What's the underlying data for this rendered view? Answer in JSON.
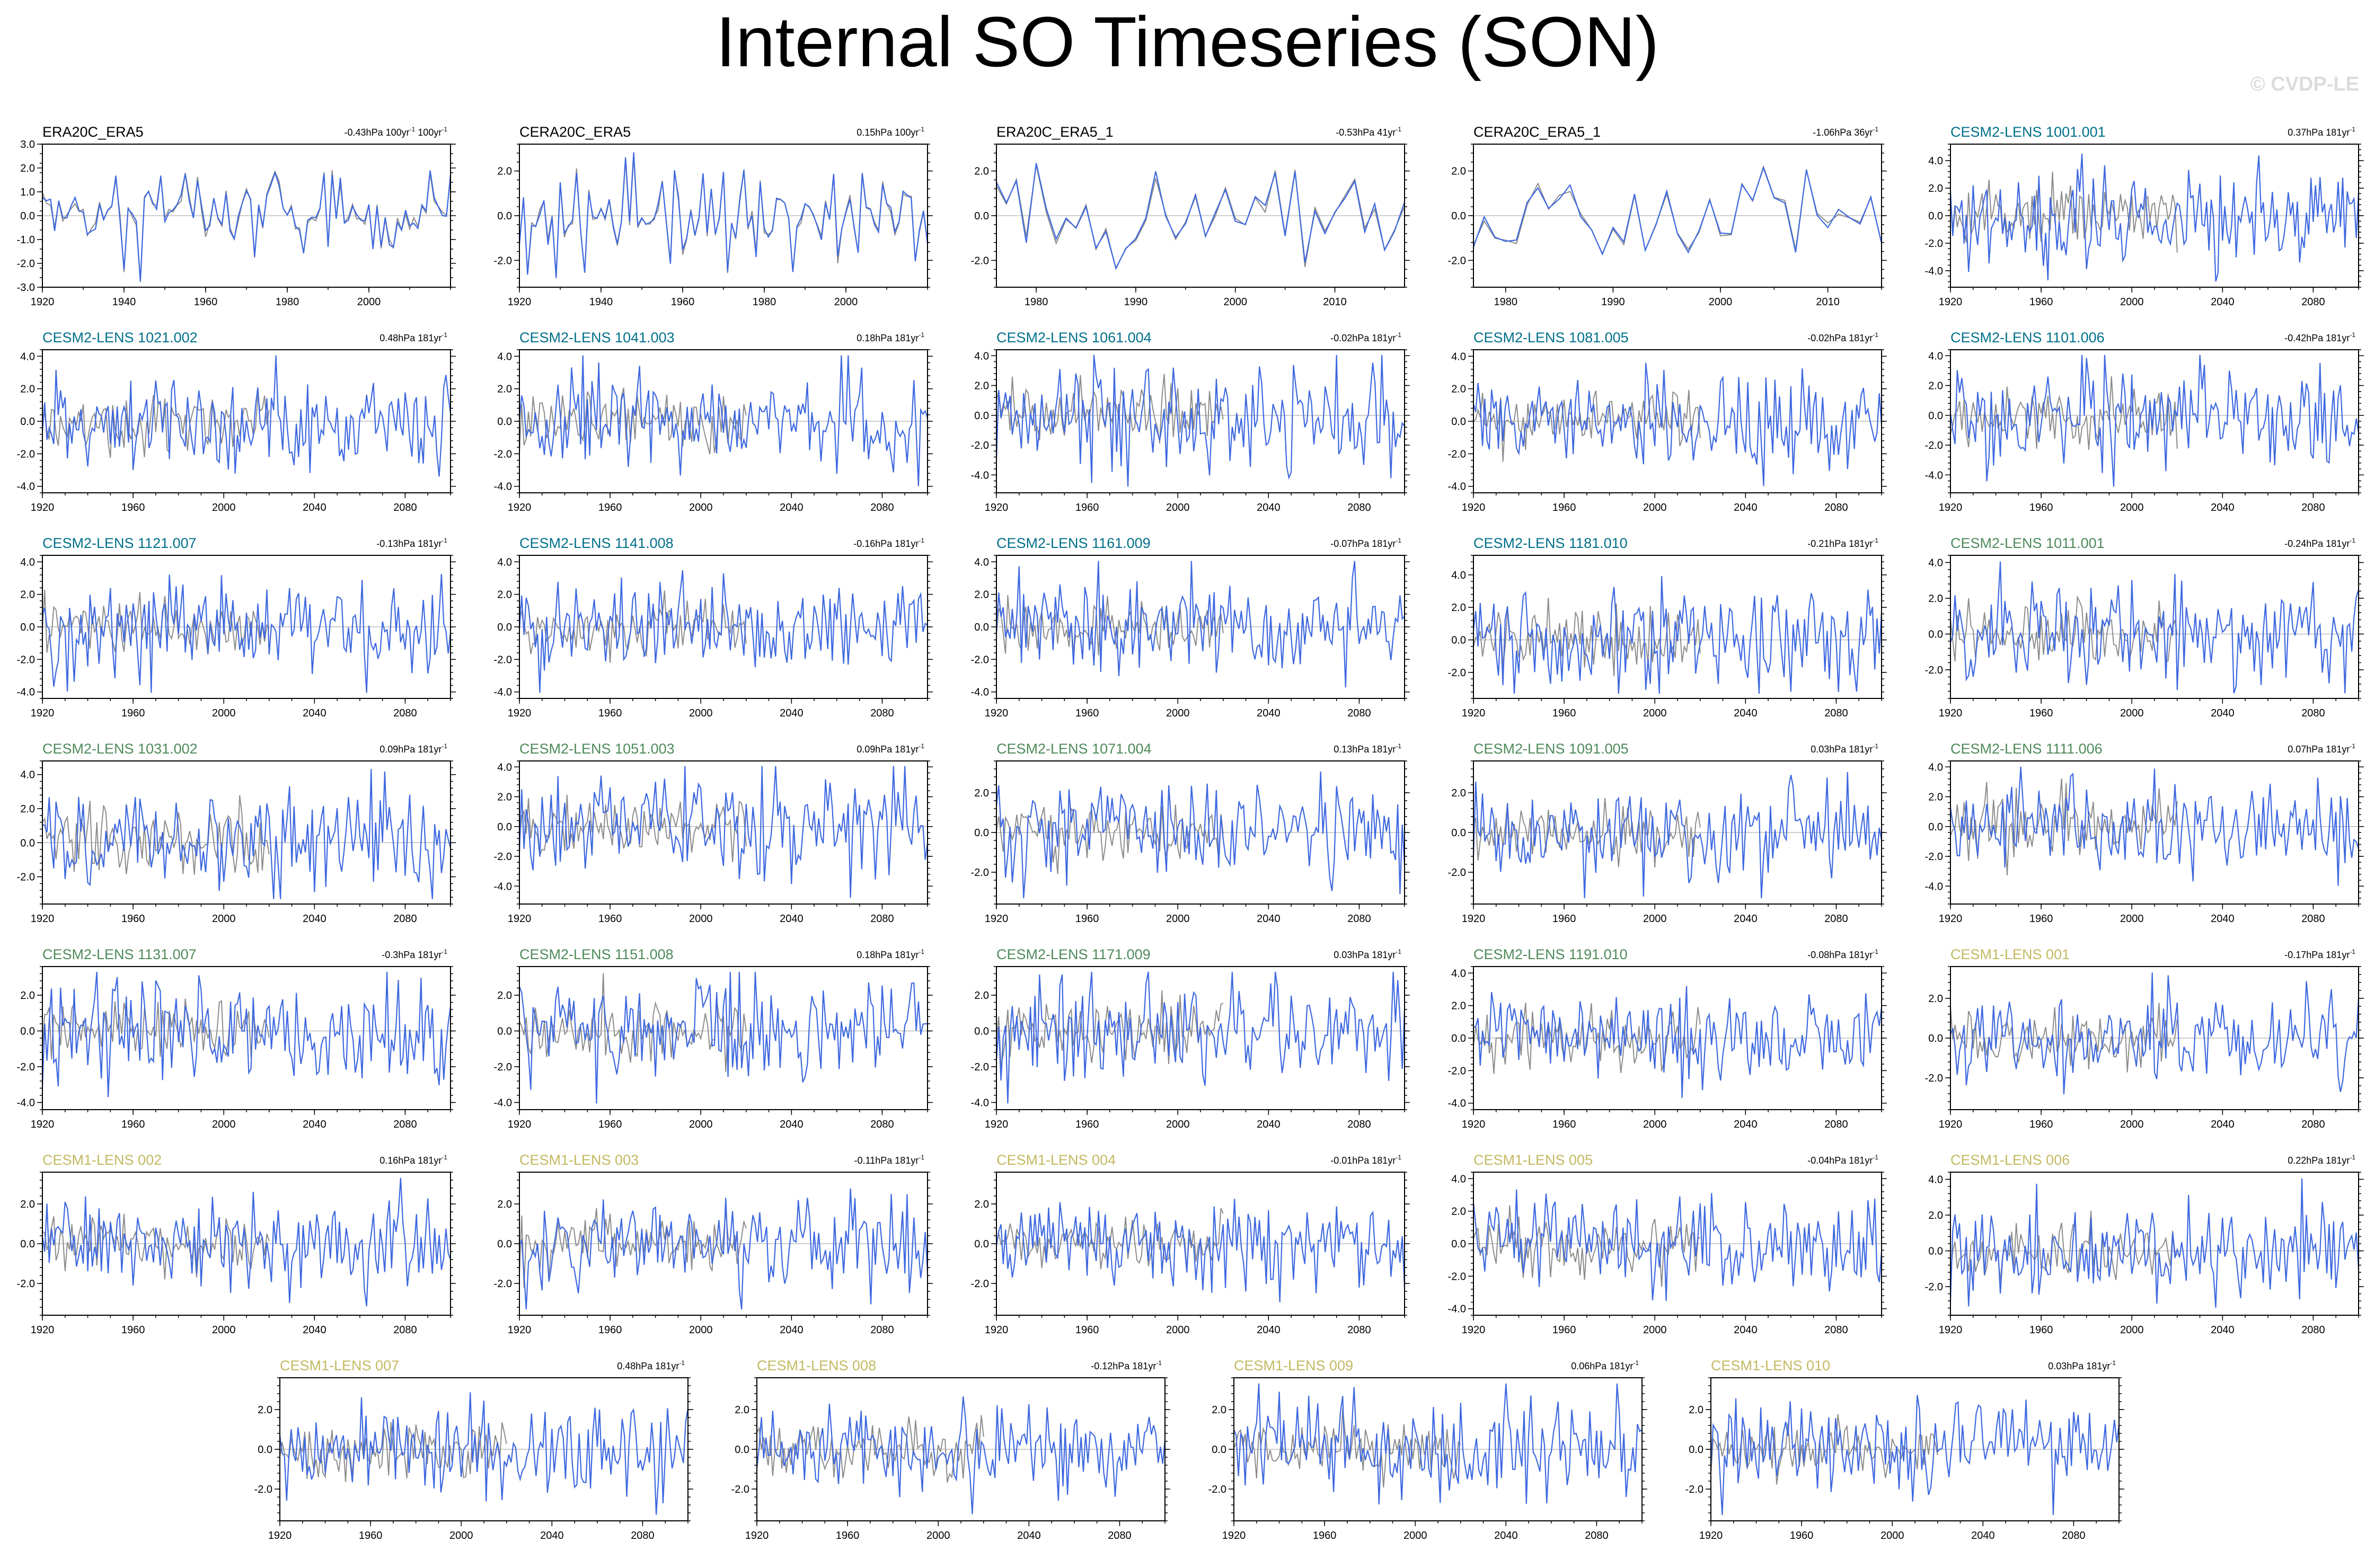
{
  "title": "Internal SO Timeseries (SON)",
  "watermark": "© CVDP-LE",
  "colors": {
    "obs": "#000000",
    "cesm2_1": "#00708a",
    "cesm2_2": "#4e8a5a",
    "cesm1": "#c3b961",
    "line_model": "#3d68e0",
    "line_obs": "#8c8c8c",
    "zero": "#bdbdbd"
  },
  "chart_data": [
    {
      "type": "line",
      "title": "ERA20C_ERA5",
      "group": "obs",
      "trend": "-0.43hPa 100yr",
      "trend_extra": "100yr",
      "x_range": [
        1920,
        2020
      ],
      "xticks": [
        1920,
        1940,
        1960,
        1980,
        2000
      ],
      "ylim": [
        -3,
        3
      ],
      "yticks": [
        "3.0",
        "2.0",
        "1.0",
        "0.0",
        "-1.0",
        "-2.0",
        "-3.0"
      ],
      "seed": 11
    },
    {
      "type": "line",
      "title": "CERA20C_ERA5",
      "group": "obs",
      "trend": "0.15hPa 100yr",
      "x_range": [
        1920,
        2020
      ],
      "xticks": [
        1920,
        1940,
        1960,
        1980,
        2000
      ],
      "ylim": [
        -3.2,
        3.2
      ],
      "yticks": [
        "2.0",
        "0.0",
        "-2.0"
      ],
      "seed": 12
    },
    {
      "type": "line",
      "title": "ERA20C_ERA5_1",
      "group": "obs",
      "trend": "-0.53hPa 41yr",
      "x_range": [
        1976,
        2017
      ],
      "xticks": [
        1980,
        1990,
        2000,
        2010
      ],
      "ylim": [
        -3.2,
        3.2
      ],
      "yticks": [
        "2.0",
        "0.0",
        "-2.0"
      ],
      "seed": 13
    },
    {
      "type": "line",
      "title": "CERA20C_ERA5_1",
      "group": "obs",
      "trend": "-1.06hPa 36yr",
      "x_range": [
        1977,
        2015
      ],
      "xticks": [
        1980,
        1990,
        2000,
        2010
      ],
      "ylim": [
        -3.2,
        3.2
      ],
      "yticks": [
        "2.0",
        "0.0",
        "-2.0"
      ],
      "seed": 14
    },
    {
      "type": "line",
      "title": "CESM2-LENS 1001.001",
      "group": "cesm2_1",
      "trend": "0.37hPa 181yr",
      "x_range": [
        1920,
        2100
      ],
      "xticks": [
        1920,
        1960,
        2000,
        2040,
        2080
      ],
      "ylim": [
        -5.2,
        5.2
      ],
      "yticks": [
        "4.0",
        "2.0",
        "0.0",
        "-2.0",
        "-4.0"
      ],
      "seed": 15
    },
    {
      "type": "line",
      "title": "CESM2-LENS 1021.002",
      "group": "cesm2_1",
      "trend": "0.48hPa 181yr",
      "x_range": [
        1920,
        2100
      ],
      "xticks": [
        1920,
        1960,
        2000,
        2040,
        2080
      ],
      "ylim": [
        -4.4,
        4.4
      ],
      "yticks": [
        "4.0",
        "2.0",
        "0.0",
        "-2.0",
        "-4.0"
      ],
      "seed": 21
    },
    {
      "type": "line",
      "title": "CESM2-LENS 1041.003",
      "group": "cesm2_1",
      "trend": "0.18hPa 181yr",
      "x_range": [
        1920,
        2100
      ],
      "xticks": [
        1920,
        1960,
        2000,
        2040,
        2080
      ],
      "ylim": [
        -4.4,
        4.4
      ],
      "yticks": [
        "4.0",
        "2.0",
        "0.0",
        "-2.0",
        "-4.0"
      ],
      "seed": 22
    },
    {
      "type": "line",
      "title": "CESM2-LENS 1061.004",
      "group": "cesm2_1",
      "trend": "-0.02hPa 181yr",
      "x_range": [
        1920,
        2100
      ],
      "xticks": [
        1920,
        1960,
        2000,
        2040,
        2080
      ],
      "ylim": [
        -5.2,
        4.4
      ],
      "yticks": [
        "4.0",
        "2.0",
        "0.0",
        "-2.0",
        "-4.0"
      ],
      "seed": 23
    },
    {
      "type": "line",
      "title": "CESM2-LENS 1081.005",
      "group": "cesm2_1",
      "trend": "-0.02hPa 181yr",
      "x_range": [
        1920,
        2100
      ],
      "xticks": [
        1920,
        1960,
        2000,
        2040,
        2080
      ],
      "ylim": [
        -4.4,
        4.4
      ],
      "yticks": [
        "4.0",
        "2.0",
        "0.0",
        "-2.0",
        "-4.0"
      ],
      "seed": 24
    },
    {
      "type": "line",
      "title": "CESM2-LENS 1101.006",
      "group": "cesm2_1",
      "trend": "-0.42hPa 181yr",
      "x_range": [
        1920,
        2100
      ],
      "xticks": [
        1920,
        1960,
        2000,
        2040,
        2080
      ],
      "ylim": [
        -5.2,
        4.4
      ],
      "yticks": [
        "4.0",
        "2.0",
        "0.0",
        "-2.0",
        "-4.0"
      ],
      "seed": 25
    },
    {
      "type": "line",
      "title": "CESM2-LENS 1121.007",
      "group": "cesm2_1",
      "trend": "-0.13hPa 181yr",
      "x_range": [
        1920,
        2100
      ],
      "xticks": [
        1920,
        1960,
        2000,
        2040,
        2080
      ],
      "ylim": [
        -4.4,
        4.4
      ],
      "yticks": [
        "4.0",
        "2.0",
        "0.0",
        "-2.0",
        "-4.0"
      ],
      "seed": 31
    },
    {
      "type": "line",
      "title": "CESM2-LENS 1141.008",
      "group": "cesm2_1",
      "trend": "-0.16hPa 181yr",
      "x_range": [
        1920,
        2100
      ],
      "xticks": [
        1920,
        1960,
        2000,
        2040,
        2080
      ],
      "ylim": [
        -4.4,
        4.4
      ],
      "yticks": [
        "4.0",
        "2.0",
        "0.0",
        "-2.0",
        "-4.0"
      ],
      "seed": 32
    },
    {
      "type": "line",
      "title": "CESM2-LENS 1161.009",
      "group": "cesm2_1",
      "trend": "-0.07hPa 181yr",
      "x_range": [
        1920,
        2100
      ],
      "xticks": [
        1920,
        1960,
        2000,
        2040,
        2080
      ],
      "ylim": [
        -4.4,
        4.4
      ],
      "yticks": [
        "4.0",
        "2.0",
        "0.0",
        "-2.0",
        "-4.0"
      ],
      "seed": 33
    },
    {
      "type": "line",
      "title": "CESM2-LENS 1181.010",
      "group": "cesm2_1",
      "trend": "-0.21hPa 181yr",
      "x_range": [
        1920,
        2100
      ],
      "xticks": [
        1920,
        1960,
        2000,
        2040,
        2080
      ],
      "ylim": [
        -3.6,
        5.2
      ],
      "yticks": [
        "4.0",
        "2.0",
        "0.0",
        "-2.0"
      ],
      "seed": 34
    },
    {
      "type": "line",
      "title": "CESM2-LENS 1011.001",
      "group": "cesm2_2",
      "trend": "-0.24hPa 181yr",
      "x_range": [
        1920,
        2100
      ],
      "xticks": [
        1920,
        1960,
        2000,
        2040,
        2080
      ],
      "ylim": [
        -3.6,
        4.4
      ],
      "yticks": [
        "4.0",
        "2.0",
        "0.0",
        "-2.0"
      ],
      "seed": 35
    },
    {
      "type": "line",
      "title": "CESM2-LENS 1031.002",
      "group": "cesm2_2",
      "trend": "0.09hPa 181yr",
      "x_range": [
        1920,
        2100
      ],
      "xticks": [
        1920,
        1960,
        2000,
        2040,
        2080
      ],
      "ylim": [
        -3.6,
        4.8
      ],
      "yticks": [
        "4.0",
        "2.0",
        "0.0",
        "-2.0"
      ],
      "seed": 41
    },
    {
      "type": "line",
      "title": "CESM2-LENS 1051.003",
      "group": "cesm2_2",
      "trend": "0.09hPa 181yr",
      "x_range": [
        1920,
        2100
      ],
      "xticks": [
        1920,
        1960,
        2000,
        2040,
        2080
      ],
      "ylim": [
        -5.2,
        4.4
      ],
      "yticks": [
        "4.0",
        "2.0",
        "0.0",
        "-2.0",
        "-4.0"
      ],
      "seed": 42
    },
    {
      "type": "line",
      "title": "CESM2-LENS 1071.004",
      "group": "cesm2_2",
      "trend": "0.13hPa 181yr",
      "x_range": [
        1920,
        2100
      ],
      "xticks": [
        1920,
        1960,
        2000,
        2040,
        2080
      ],
      "ylim": [
        -3.6,
        3.6
      ],
      "yticks": [
        "2.0",
        "0.0",
        "-2.0"
      ],
      "seed": 43
    },
    {
      "type": "line",
      "title": "CESM2-LENS 1091.005",
      "group": "cesm2_2",
      "trend": "0.03hPa 181yr",
      "x_range": [
        1920,
        2100
      ],
      "xticks": [
        1920,
        1960,
        2000,
        2040,
        2080
      ],
      "ylim": [
        -3.6,
        3.6
      ],
      "yticks": [
        "2.0",
        "0.0",
        "-2.0"
      ],
      "seed": 44
    },
    {
      "type": "line",
      "title": "CESM2-LENS 1111.006",
      "group": "cesm2_2",
      "trend": "0.07hPa 181yr",
      "x_range": [
        1920,
        2100
      ],
      "xticks": [
        1920,
        1960,
        2000,
        2040,
        2080
      ],
      "ylim": [
        -5.2,
        4.4
      ],
      "yticks": [
        "4.0",
        "2.0",
        "0.0",
        "-2.0",
        "-4.0"
      ],
      "seed": 45
    },
    {
      "type": "line",
      "title": "CESM2-LENS 1131.007",
      "group": "cesm2_2",
      "trend": "-0.3hPa 181yr",
      "x_range": [
        1920,
        2100
      ],
      "xticks": [
        1920,
        1960,
        2000,
        2040,
        2080
      ],
      "ylim": [
        -4.4,
        3.6
      ],
      "yticks": [
        "2.0",
        "0.0",
        "-2.0",
        "-4.0"
      ],
      "seed": 51
    },
    {
      "type": "line",
      "title": "CESM2-LENS 1151.008",
      "group": "cesm2_2",
      "trend": "0.18hPa 181yr",
      "x_range": [
        1920,
        2100
      ],
      "xticks": [
        1920,
        1960,
        2000,
        2040,
        2080
      ],
      "ylim": [
        -4.4,
        3.6
      ],
      "yticks": [
        "2.0",
        "0.0",
        "-2.0",
        "-4.0"
      ],
      "seed": 52
    },
    {
      "type": "line",
      "title": "CESM2-LENS 1171.009",
      "group": "cesm2_2",
      "trend": "0.03hPa 181yr",
      "x_range": [
        1920,
        2100
      ],
      "xticks": [
        1920,
        1960,
        2000,
        2040,
        2080
      ],
      "ylim": [
        -4.4,
        3.6
      ],
      "yticks": [
        "2.0",
        "0.0",
        "-2.0",
        "-4.0"
      ],
      "seed": 53
    },
    {
      "type": "line",
      "title": "CESM2-LENS 1191.010",
      "group": "cesm2_2",
      "trend": "-0.08hPa 181yr",
      "x_range": [
        1920,
        2100
      ],
      "xticks": [
        1920,
        1960,
        2000,
        2040,
        2080
      ],
      "ylim": [
        -4.4,
        4.4
      ],
      "yticks": [
        "4.0",
        "2.0",
        "0.0",
        "-2.0",
        "-4.0"
      ],
      "seed": 54
    },
    {
      "type": "line",
      "title": "CESM1-LENS 001",
      "group": "cesm1",
      "trend": "-0.17hPa 181yr",
      "x_range": [
        1920,
        2100
      ],
      "xticks": [
        1920,
        1960,
        2000,
        2040,
        2080
      ],
      "ylim": [
        -3.6,
        3.6
      ],
      "yticks": [
        "2.0",
        "0.0",
        "-2.0"
      ],
      "seed": 55
    },
    {
      "type": "line",
      "title": "CESM1-LENS 002",
      "group": "cesm1",
      "trend": "0.16hPa 181yr",
      "x_range": [
        1920,
        2100
      ],
      "xticks": [
        1920,
        1960,
        2000,
        2040,
        2080
      ],
      "ylim": [
        -3.6,
        3.6
      ],
      "yticks": [
        "2.0",
        "0.0",
        "-2.0"
      ],
      "seed": 61
    },
    {
      "type": "line",
      "title": "CESM1-LENS 003",
      "group": "cesm1",
      "trend": "-0.11hPa 181yr",
      "x_range": [
        1920,
        2100
      ],
      "xticks": [
        1920,
        1960,
        2000,
        2040,
        2080
      ],
      "ylim": [
        -3.6,
        3.6
      ],
      "yticks": [
        "2.0",
        "0.0",
        "-2.0"
      ],
      "seed": 62
    },
    {
      "type": "line",
      "title": "CESM1-LENS 004",
      "group": "cesm1",
      "trend": "-0.01hPa 181yr",
      "x_range": [
        1920,
        2100
      ],
      "xticks": [
        1920,
        1960,
        2000,
        2040,
        2080
      ],
      "ylim": [
        -3.6,
        3.6
      ],
      "yticks": [
        "2.0",
        "0.0",
        "-2.0"
      ],
      "seed": 63
    },
    {
      "type": "line",
      "title": "CESM1-LENS 005",
      "group": "cesm1",
      "trend": "-0.04hPa 181yr",
      "x_range": [
        1920,
        2100
      ],
      "xticks": [
        1920,
        1960,
        2000,
        2040,
        2080
      ],
      "ylim": [
        -4.4,
        4.4
      ],
      "yticks": [
        "4.0",
        "2.0",
        "0.0",
        "-2.0",
        "-4.0"
      ],
      "seed": 64
    },
    {
      "type": "line",
      "title": "CESM1-LENS 006",
      "group": "cesm1",
      "trend": "0.22hPa 181yr",
      "x_range": [
        1920,
        2100
      ],
      "xticks": [
        1920,
        1960,
        2000,
        2040,
        2080
      ],
      "ylim": [
        -3.6,
        4.4
      ],
      "yticks": [
        "4.0",
        "2.0",
        "0.0",
        "-2.0"
      ],
      "seed": 65
    },
    {
      "type": "line",
      "title": "CESM1-LENS 007",
      "group": "cesm1",
      "trend": "0.48hPa 181yr",
      "x_range": [
        1920,
        2100
      ],
      "xticks": [
        1920,
        1960,
        2000,
        2040,
        2080
      ],
      "ylim": [
        -3.6,
        3.6
      ],
      "yticks": [
        "2.0",
        "0.0",
        "-2.0"
      ],
      "seed": 71
    },
    {
      "type": "line",
      "title": "CESM1-LENS 008",
      "group": "cesm1",
      "trend": "-0.12hPa 181yr",
      "x_range": [
        1920,
        2100
      ],
      "xticks": [
        1920,
        1960,
        2000,
        2040,
        2080
      ],
      "ylim": [
        -3.6,
        3.6
      ],
      "yticks": [
        "2.0",
        "0.0",
        "-2.0"
      ],
      "seed": 72
    },
    {
      "type": "line",
      "title": "CESM1-LENS 009",
      "group": "cesm1",
      "trend": "0.06hPa 181yr",
      "x_range": [
        1920,
        2100
      ],
      "xticks": [
        1920,
        1960,
        2000,
        2040,
        2080
      ],
      "ylim": [
        -3.6,
        3.6
      ],
      "yticks": [
        "2.0",
        "0.0",
        "-2.0"
      ],
      "seed": 73
    },
    {
      "type": "line",
      "title": "CESM1-LENS 010",
      "group": "cesm1",
      "trend": "0.03hPa 181yr",
      "x_range": [
        1920,
        2100
      ],
      "xticks": [
        1920,
        1960,
        2000,
        2040,
        2080
      ],
      "ylim": [
        -3.6,
        3.6
      ],
      "yticks": [
        "2.0",
        "0.0",
        "-2.0"
      ],
      "seed": 74
    }
  ]
}
